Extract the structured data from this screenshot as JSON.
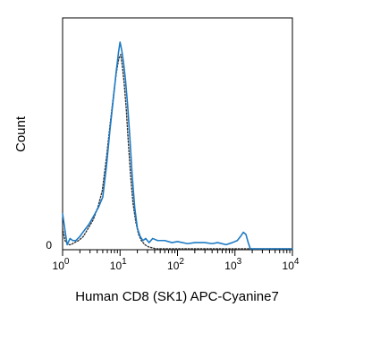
{
  "chart_data": {
    "type": "line",
    "title": "",
    "xlabel": "Human CD8 (SK1) APC-Cyanine7",
    "ylabel": "Count",
    "x_scale": "log",
    "xlim": [
      1,
      10000
    ],
    "ylim": [
      0,
      1
    ],
    "grid": false,
    "legend": "none",
    "x_ticks": [
      {
        "value": 1,
        "base": "10",
        "exp": "0"
      },
      {
        "value": 10,
        "base": "10",
        "exp": "1"
      },
      {
        "value": 100,
        "base": "10",
        "exp": "2"
      },
      {
        "value": 1000,
        "base": "10",
        "exp": "3"
      },
      {
        "value": 10000,
        "base": "10",
        "exp": "4"
      }
    ],
    "y_ticks": [
      {
        "value": 0,
        "label": "0"
      }
    ],
    "series": [
      {
        "style": "solid",
        "color": "#1f7bc4",
        "x": [
          1.0,
          1.1,
          1.2,
          1.35,
          1.5,
          1.7,
          2.0,
          2.4,
          2.9,
          3.5,
          4.2,
          5.0,
          5.8,
          6.7,
          7.6,
          8.6,
          9.4,
          10.0,
          10.7,
          11.5,
          12.4,
          13.5,
          14.8,
          16.2,
          18.0,
          20.0,
          22.4,
          25.0,
          28.0,
          32.0,
          37.0,
          45.0,
          60.0,
          80.0,
          100,
          150,
          200,
          300,
          400,
          500,
          700,
          900,
          1100,
          1250,
          1400,
          1550,
          1700,
          1850,
          2100,
          2600,
          3500,
          5000,
          7000,
          10000
        ],
        "y": [
          0.17,
          0.09,
          0.02,
          0.05,
          0.04,
          0.04,
          0.06,
          0.09,
          0.12,
          0.16,
          0.2,
          0.25,
          0.4,
          0.58,
          0.72,
          0.86,
          0.95,
          1.0,
          0.96,
          0.9,
          0.82,
          0.7,
          0.54,
          0.36,
          0.2,
          0.1,
          0.06,
          0.04,
          0.05,
          0.03,
          0.05,
          0.04,
          0.04,
          0.03,
          0.035,
          0.025,
          0.03,
          0.03,
          0.025,
          0.03,
          0.02,
          0.03,
          0.04,
          0.06,
          0.08,
          0.07,
          0.03,
          0.0,
          0.0,
          0.0,
          0.0,
          0.0,
          0.0,
          0.0
        ]
      },
      {
        "style": "dotted",
        "color": "#333333",
        "x": [
          1.0,
          1.1,
          1.25,
          1.4,
          1.6,
          1.9,
          2.3,
          2.8,
          3.4,
          4.1,
          4.9,
          5.8,
          6.7,
          7.6,
          8.6,
          9.5,
          10.3,
          11.0,
          11.8,
          12.8,
          13.9,
          15.2,
          16.8,
          18.8,
          21.0,
          23.5,
          27.0,
          31.0,
          36.0,
          42.0,
          50.0,
          60.0,
          100,
          1000,
          10000
        ],
        "y": [
          0.1,
          0.04,
          0.02,
          0.02,
          0.03,
          0.04,
          0.06,
          0.1,
          0.14,
          0.2,
          0.28,
          0.44,
          0.6,
          0.73,
          0.85,
          0.92,
          0.94,
          0.88,
          0.8,
          0.68,
          0.52,
          0.36,
          0.22,
          0.13,
          0.07,
          0.04,
          0.02,
          0.01,
          0.005,
          0.0,
          0.0,
          0.0,
          0.0,
          0.0,
          0.0
        ]
      }
    ]
  }
}
